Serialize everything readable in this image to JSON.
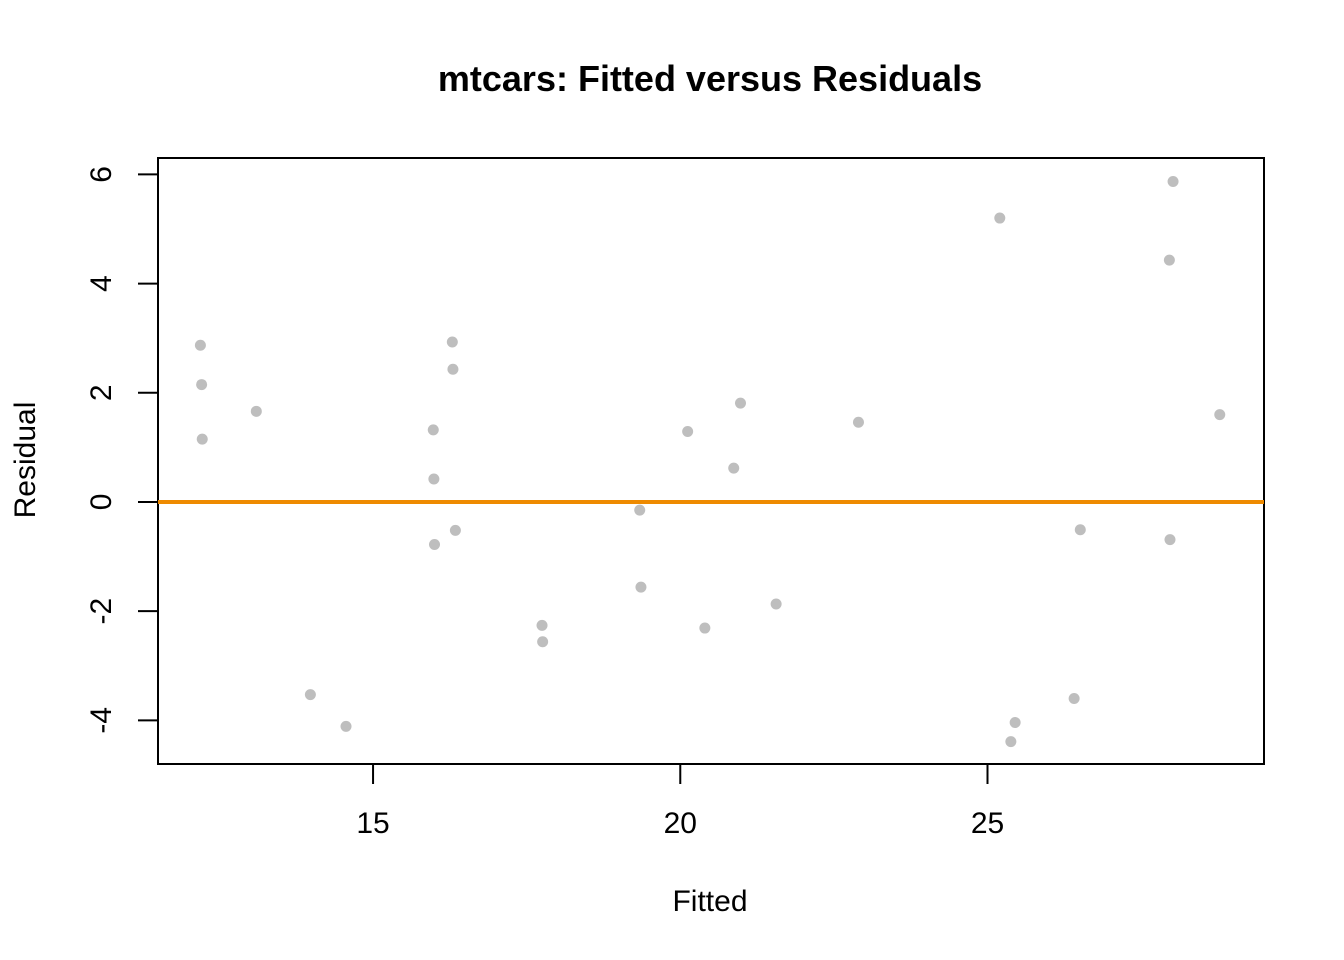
{
  "chart_data": {
    "type": "scatter",
    "title": "mtcars: Fitted versus Residuals",
    "xlabel": "Fitted",
    "ylabel": "Residual",
    "xlim": [
      11.5,
      29.5
    ],
    "ylim": [
      -4.8,
      6.3
    ],
    "x_ticks": [
      15,
      20,
      25
    ],
    "y_ticks": [
      -4,
      -2,
      0,
      2,
      4,
      6
    ],
    "x_tick_labels": [
      "15",
      "20",
      "25"
    ],
    "y_tick_labels": [
      "-4",
      "-2",
      "0",
      "2",
      "4",
      "6"
    ],
    "grid": false,
    "legend": "none",
    "point_color": "#bebebe",
    "reference_line": {
      "y": 0,
      "color": "#ee8a00"
    },
    "series": [
      {
        "x": [
          12.19,
          12.21,
          12.22,
          13.1,
          13.98,
          14.56,
          15.98,
          15.99,
          16.0,
          16.29,
          16.3,
          16.34,
          17.75,
          17.76,
          19.34,
          19.36,
          20.12,
          20.4,
          20.87,
          20.98,
          21.56,
          22.9,
          25.2,
          25.38,
          25.45,
          26.41,
          26.51,
          27.96,
          27.97,
          28.02,
          28.78
        ],
        "y": [
          2.87,
          2.15,
          1.15,
          1.66,
          -3.53,
          -4.11,
          1.32,
          0.42,
          -0.78,
          2.93,
          2.43,
          -0.52,
          -2.26,
          -2.56,
          -0.15,
          -1.56,
          1.29,
          -2.31,
          0.62,
          1.81,
          -1.87,
          1.46,
          5.2,
          -4.39,
          -4.04,
          -3.6,
          -0.51,
          4.43,
          -0.69,
          5.87,
          1.6
        ]
      }
    ]
  }
}
